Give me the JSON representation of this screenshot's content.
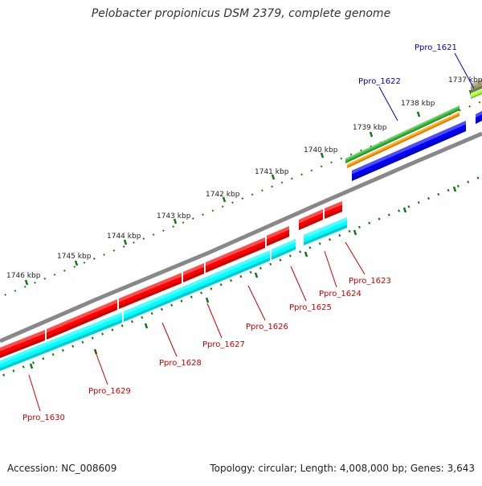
{
  "title": "Pelobacter propionicus DSM 2379, complete genome",
  "footer": {
    "accession": "Accession: NC_008609",
    "meta": "Topology: circular; Length: 4,008,000 bp; Genes: 3,643"
  },
  "scale_labels": [
    "1737 kbp",
    "1738 kbp",
    "1739 kbp",
    "1740 kbp",
    "1741 kbp",
    "1742 kbp",
    "1743 kbp",
    "1744 kbp",
    "1745 kbp",
    "1746 kbp"
  ],
  "gene_labels_forward": [
    "Ppro_1621",
    "Ppro_1622"
  ],
  "gene_labels_reverse": [
    "Ppro_1623",
    "Ppro_1624",
    "Ppro_1625",
    "Ppro_1626",
    "Ppro_1627",
    "Ppro_1628",
    "Ppro_1629",
    "Ppro_1630"
  ],
  "colors": {
    "forward_label": "#0000cc",
    "reverse_label": "#cc0000",
    "cds": "#ff0000",
    "gene": "#00ffff",
    "backbone": "#888888",
    "tick": "#117711",
    "forward_cds": "#0000ff",
    "track_green": "#33bb33",
    "track_orange": "#ff9900",
    "track_olive": "#a09a6a",
    "track_lime": "#aaff44"
  }
}
